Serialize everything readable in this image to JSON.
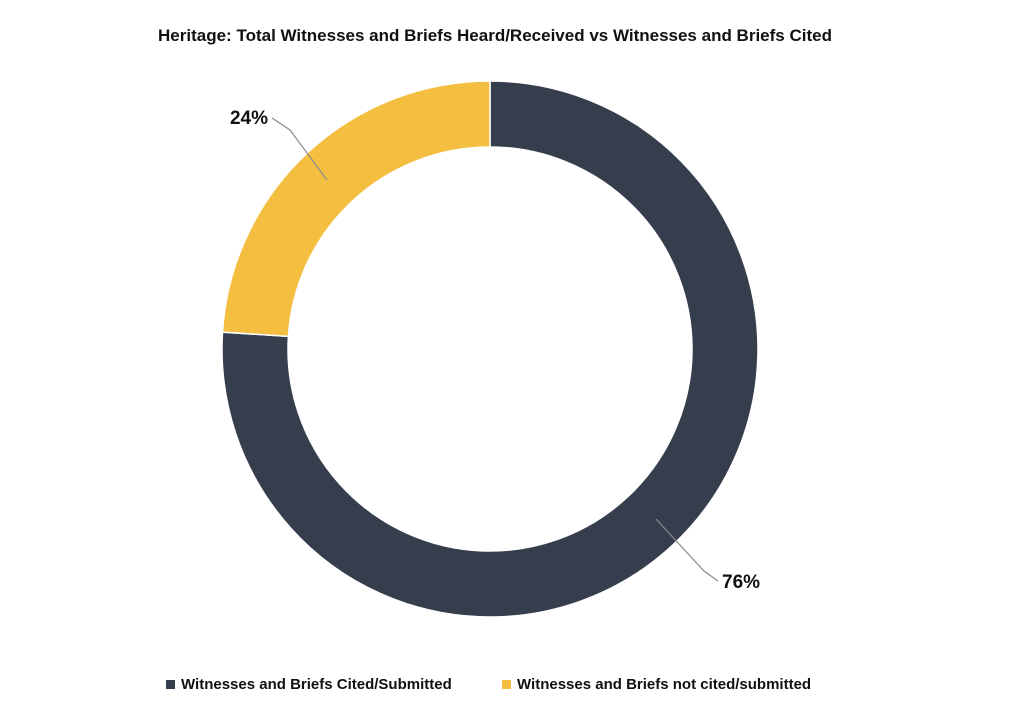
{
  "chart_data": {
    "type": "pie",
    "title": "Heritage: Total Witnesses and Briefs Heard/Received vs Witnesses and Briefs Cited",
    "donut": true,
    "slices": [
      {
        "name": "Witnesses and Briefs Cited/Submitted",
        "value": 76,
        "label": "76%",
        "color": "#363e4e"
      },
      {
        "name": "Witnesses and Briefs not cited/submitted",
        "value": 24,
        "label": "24%",
        "color": "#f4be40"
      }
    ],
    "legend_position": "bottom"
  }
}
